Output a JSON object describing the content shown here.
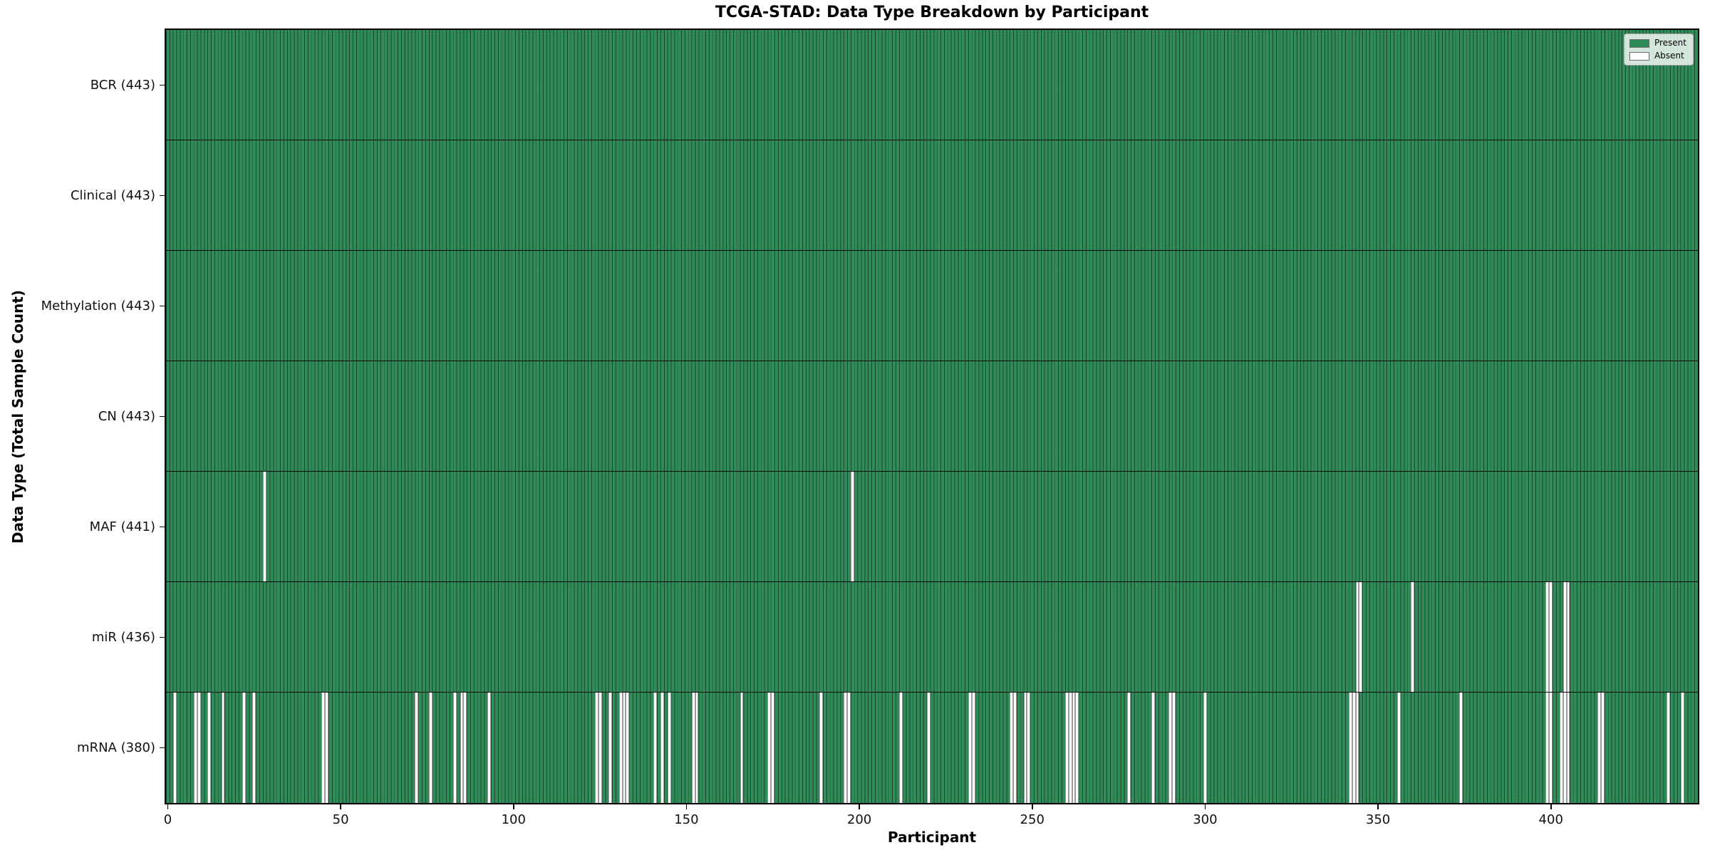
{
  "chart_data": {
    "type": "heatmap",
    "title": "TCGA-STAD: Data Type Breakdown by Participant",
    "xlabel": "Participant",
    "ylabel": "Data Type (Total Sample Count)",
    "x_ticks": [
      0,
      50,
      100,
      150,
      200,
      250,
      300,
      350,
      400
    ],
    "x_range": [
      0,
      443
    ],
    "n_participants": 443,
    "grid": false,
    "legend_position": "upper right",
    "colors": {
      "present": "#2e8b57",
      "absent": "#ffffff",
      "bar_edge": "#1c1c1c"
    },
    "legend": [
      {
        "label": "Present",
        "color": "#2e8b57"
      },
      {
        "label": "Absent",
        "color": "#ffffff"
      }
    ],
    "rows": [
      {
        "label": "BCR (443)",
        "data_type": "BCR",
        "total": 443,
        "absent_participants": []
      },
      {
        "label": "Clinical (443)",
        "data_type": "Clinical",
        "total": 443,
        "absent_participants": []
      },
      {
        "label": "Methylation (443)",
        "data_type": "Methylation",
        "total": 443,
        "absent_participants": []
      },
      {
        "label": "CN (443)",
        "data_type": "CN",
        "total": 443,
        "absent_participants": []
      },
      {
        "label": "MAF (441)",
        "data_type": "MAF",
        "total": 441,
        "absent_participants": [
          28,
          198
        ]
      },
      {
        "label": "miR (436)",
        "data_type": "miR",
        "total": 436,
        "absent_participants": [
          344,
          345,
          360,
          399,
          400,
          404,
          405
        ]
      },
      {
        "label": "mRNA (380)",
        "data_type": "mRNA",
        "total": 380,
        "absent_participants": [
          2,
          8,
          9,
          12,
          16,
          22,
          25,
          45,
          46,
          72,
          76,
          83,
          85,
          86,
          93,
          124,
          125,
          128,
          131,
          132,
          133,
          141,
          143,
          145,
          152,
          153,
          166,
          174,
          175,
          189,
          196,
          197,
          212,
          220,
          232,
          233,
          244,
          245,
          248,
          249,
          260,
          261,
          262,
          263,
          278,
          285,
          290,
          291,
          300,
          342,
          343,
          344,
          356,
          374,
          399,
          400,
          403,
          404,
          405,
          414,
          415,
          434,
          438
        ]
      }
    ]
  }
}
